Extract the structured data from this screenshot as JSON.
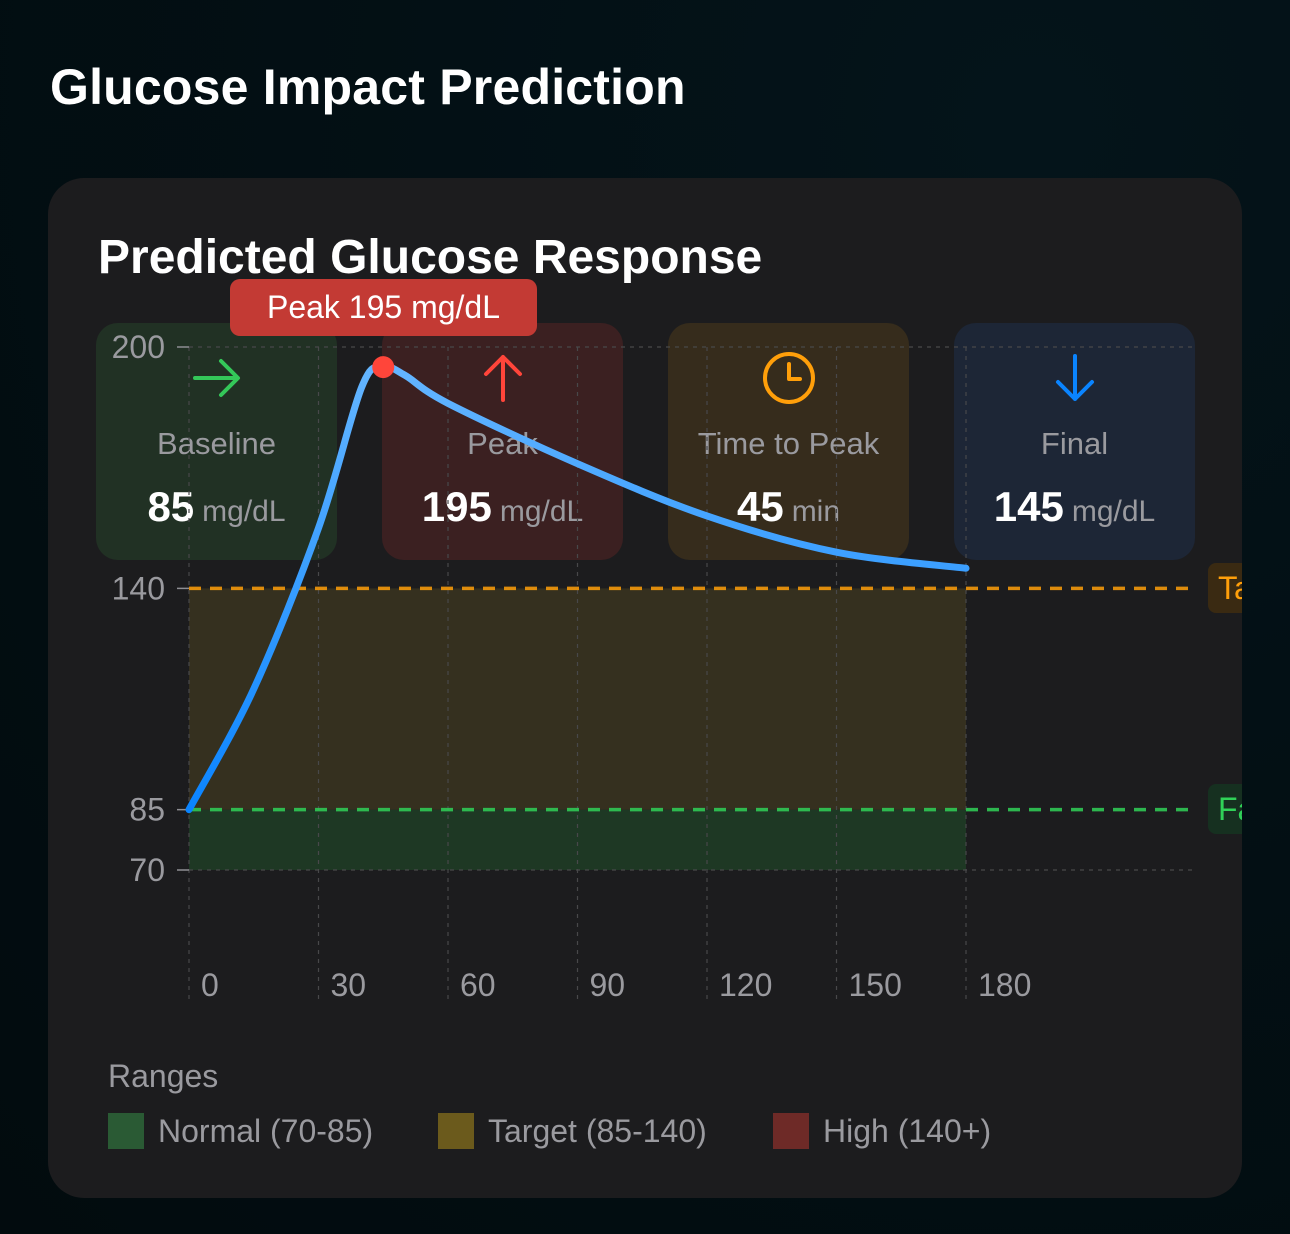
{
  "page_title": "Glucose Impact Prediction",
  "card": {
    "title": "Predicted Glucose Response",
    "stats": [
      {
        "label": "Baseline",
        "value": "85",
        "unit": "mg/dL",
        "icon": "arrow-right-icon",
        "color": "#34c759"
      },
      {
        "label": "Peak",
        "value": "195",
        "unit": "mg/dL",
        "icon": "arrow-up-icon",
        "color": "#ff453a"
      },
      {
        "label": "Time to Peak",
        "value": "45",
        "unit": "min",
        "icon": "clock-icon",
        "color": "#ff9f0a"
      },
      {
        "label": "Final",
        "value": "145",
        "unit": "mg/dL",
        "icon": "arrow-down-icon",
        "color": "#0a84ff"
      }
    ],
    "peak_callout": "Peak 195 mg/dL",
    "ref_lines": [
      {
        "label": "Ta",
        "value": 140,
        "color": "#ff9f0a"
      },
      {
        "label": "Fa",
        "value": 85,
        "color": "#30d158"
      }
    ],
    "legend": {
      "title": "Ranges",
      "items": [
        {
          "label": "Normal (70-85)",
          "color": "#2a5a34"
        },
        {
          "label": "Target (85-140)",
          "color": "#6b5a1c"
        },
        {
          "label": "High (140+)",
          "color": "#6e2a27"
        }
      ]
    }
  },
  "chart_data": {
    "type": "line",
    "series": [
      {
        "x": [
          0,
          15,
          30,
          40,
          45,
          50,
          60,
          90,
          120,
          150,
          180
        ],
        "y": [
          85,
          115,
          155,
          190,
          195,
          193,
          186,
          171,
          158,
          149,
          145
        ]
      }
    ],
    "peak": {
      "x": 45,
      "y": 195
    },
    "x_ticks": [
      0,
      30,
      60,
      90,
      120,
      150,
      180
    ],
    "y_ticks": [
      70,
      85,
      140,
      200
    ],
    "xlim": [
      0,
      180
    ],
    "ylim": [
      70,
      200
    ],
    "grid": true,
    "bands": [
      {
        "from": 70,
        "to": 85,
        "color": "#1f3d26"
      },
      {
        "from": 85,
        "to": 140,
        "color": "#3a3420"
      }
    ]
  }
}
